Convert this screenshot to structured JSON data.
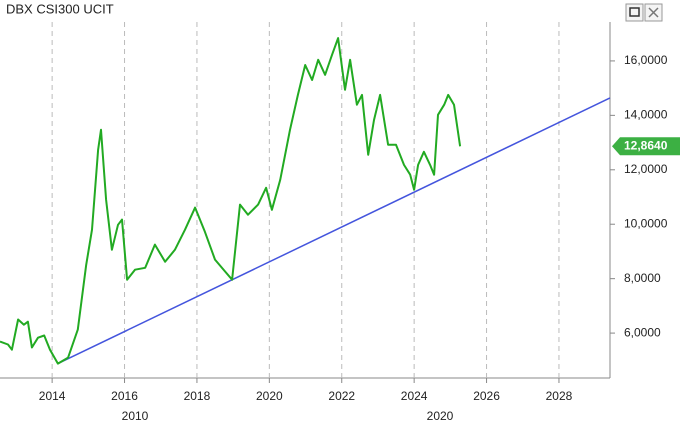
{
  "chart_data": {
    "type": "line",
    "title": "DBX CSI300 UCIT",
    "x": [
      2012.56,
      2012.78,
      2012.89,
      2013.06,
      2013.22,
      2013.33,
      2013.44,
      2013.61,
      2013.78,
      2013.94,
      2014.16,
      2014.44,
      2014.71,
      2014.94,
      2015.1,
      2015.27,
      2015.35,
      2015.49,
      2015.65,
      2015.82,
      2015.93,
      2016.07,
      2016.29,
      2016.57,
      2016.84,
      2017.12,
      2017.39,
      2017.67,
      2017.95,
      2018.22,
      2018.5,
      2018.78,
      2018.97,
      2019.19,
      2019.41,
      2019.69,
      2019.91,
      2020.07,
      2020.3,
      2020.57,
      2020.79,
      2020.99,
      2021.18,
      2021.35,
      2021.54,
      2021.73,
      2021.9,
      2022.09,
      2022.23,
      2022.42,
      2022.56,
      2022.73,
      2022.89,
      2023.06,
      2023.28,
      2023.5,
      2023.72,
      2023.89,
      2024.0,
      2024.11,
      2024.27,
      2024.44,
      2024.55,
      2024.66,
      2024.83,
      2024.94,
      2025.1,
      2025.27
    ],
    "values": [
      5.69,
      5.58,
      5.39,
      6.5,
      6.31,
      6.42,
      5.47,
      5.83,
      5.91,
      5.39,
      4.88,
      5.1,
      6.13,
      8.51,
      9.8,
      12.73,
      13.47,
      10.9,
      9.06,
      9.98,
      10.17,
      7.96,
      8.33,
      8.4,
      9.25,
      8.62,
      9.06,
      9.8,
      10.61,
      9.72,
      8.7,
      8.26,
      7.96,
      10.72,
      10.35,
      10.72,
      11.34,
      10.53,
      11.63,
      13.47,
      14.75,
      15.85,
      15.3,
      16.04,
      15.49,
      16.22,
      16.84,
      14.94,
      16.04,
      14.39,
      14.75,
      12.55,
      13.83,
      14.75,
      12.92,
      12.92,
      12.18,
      11.82,
      11.27,
      12.18,
      12.66,
      12.18,
      11.82,
      14.02,
      14.39,
      14.75,
      14.39,
      12.864
    ],
    "color": "#22aa22",
    "trendline": {
      "x": [
        2014.16,
        2029.41
      ],
      "values": [
        4.88,
        14.64
      ],
      "color": "#4455dd"
    },
    "last_value": {
      "value": 12.864,
      "label": "12,8640"
    },
    "xlim": [
      2012.56,
      2029.41
    ],
    "xticks": [
      2014,
      2016,
      2018,
      2020,
      2022,
      2024,
      2026,
      2028
    ],
    "x_group_labels": [
      "2010",
      "2020"
    ],
    "ylim": [
      4.35,
      17.43
    ],
    "yticks": [
      {
        "value": 6,
        "label": "6,0000"
      },
      {
        "value": 8,
        "label": "8,0000"
      },
      {
        "value": 10,
        "label": "10,0000"
      },
      {
        "value": 12,
        "label": "12,0000"
      },
      {
        "value": 14,
        "label": "14,0000"
      },
      {
        "value": 16,
        "label": "16,0000"
      }
    ],
    "grid": true
  }
}
